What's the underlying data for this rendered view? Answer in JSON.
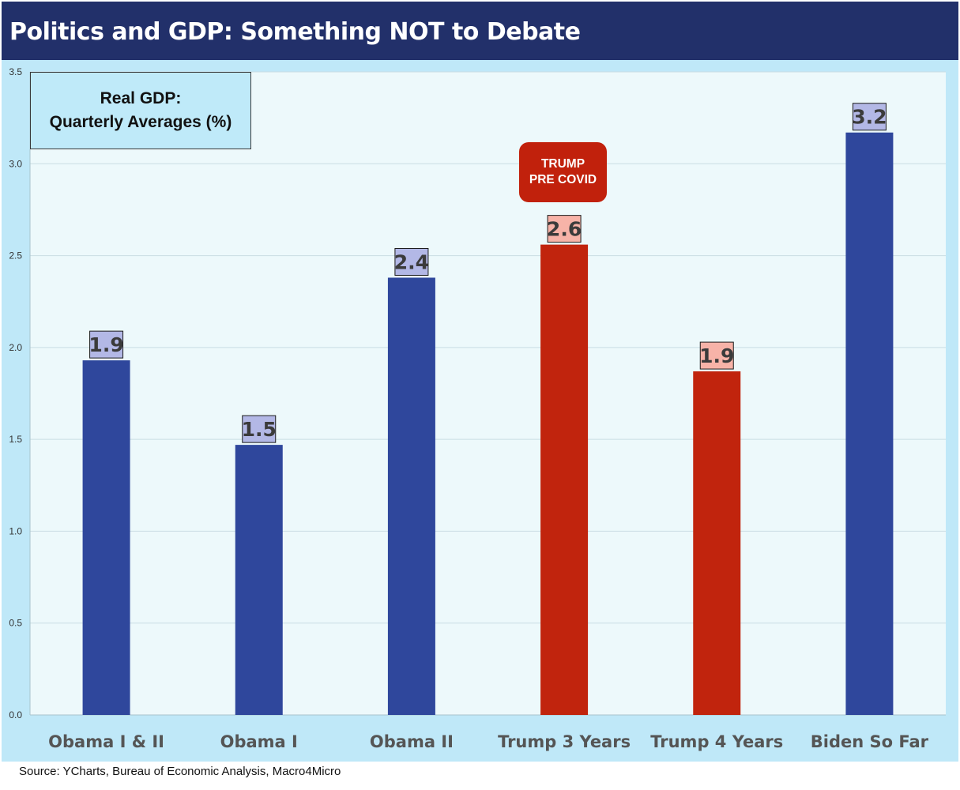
{
  "header": {
    "title": "Politics and GDP: Something NOT to Debate"
  },
  "chart_box": {
    "line1": "Real GDP:",
    "line2": "Quarterly Averages (%)"
  },
  "callout": {
    "line1": "TRUMP",
    "line2": "PRE COVID"
  },
  "source": "Source: YCharts, Bureau of Economic Analysis, Macro4Micro",
  "colors": {
    "democrat_bar": "#2f479c",
    "republican_bar": "#c1240d",
    "democrat_label_bg": "#b3b8e6",
    "republican_label_bg": "#f7b3a8",
    "plot_background": "#edf9fb",
    "outer_background": "#bfe8f8",
    "banner": "#22306a"
  },
  "chart_data": {
    "type": "bar",
    "title": "Real GDP: Quarterly Averages (%)",
    "categories": [
      "Obama I & II",
      "Obama I",
      "Obama II",
      "Trump 3 Years",
      "Trump 4 Years",
      "Biden So Far"
    ],
    "values": [
      1.93,
      1.47,
      2.38,
      2.56,
      1.87,
      3.17
    ],
    "data_labels": [
      "1.9",
      "1.5",
      "2.4",
      "2.6",
      "1.9",
      "3.2"
    ],
    "party": [
      "D",
      "D",
      "D",
      "R",
      "R",
      "D"
    ],
    "ylim": [
      0,
      3.5
    ],
    "yticks": [
      "0.0",
      "0.5",
      "1.0",
      "1.5",
      "2.0",
      "2.5",
      "3.0",
      "3.5"
    ],
    "xlabel": "",
    "ylabel": "",
    "grid": true
  }
}
